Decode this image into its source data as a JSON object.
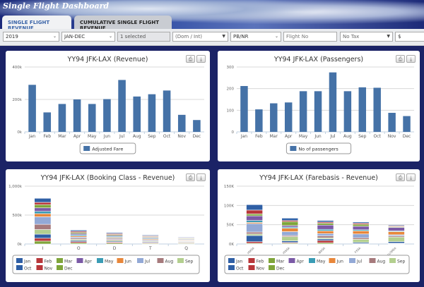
{
  "app": {
    "title": "Single Flight Dashboard"
  },
  "tabs": [
    {
      "label": "SINGLE FLIGHT REVENUE",
      "active": true
    },
    {
      "label": "CUMULATIVE SINGLE FLIGHT REVENUE",
      "active": false
    }
  ],
  "filters": {
    "year": "2019",
    "period": "JAN-DEC",
    "selection": "1 selected",
    "dom_int": "(Dom / Int)",
    "pb_nr": "PB/NR",
    "flight_placeholder": "Flight No",
    "tax": "No Tax",
    "currency": "$"
  },
  "icons": {
    "print": "printer-icon",
    "download": "download-icon"
  },
  "colors": {
    "bar": "#4572a7",
    "stack": [
      "#2f5fa5",
      "#b8373a",
      "#7fa53a",
      "#7b5aa6",
      "#3a9cb5",
      "#e8873a",
      "#93a9d6",
      "#a67a7c",
      "#b3cf8f",
      "#2f5fa5",
      "#b8373a",
      "#7fa53a"
    ]
  },
  "chart_data": [
    {
      "type": "bar",
      "title": "YY94 JFK-LAX (Revenue)",
      "categories": [
        "Jan",
        "Feb",
        "Mar",
        "Apr",
        "May",
        "Jun",
        "Jul",
        "Aug",
        "Sep",
        "Oct",
        "Nov",
        "Dec"
      ],
      "yticks": [
        "0k",
        "200k",
        "400k"
      ],
      "ylim": [
        0,
        400000
      ],
      "series": [
        {
          "name": "Adjusted Fare",
          "values": [
            290000,
            120000,
            172000,
            200000,
            172000,
            202000,
            320000,
            218000,
            232000,
            255000,
            105000,
            73000
          ]
        }
      ],
      "legend": "bottom",
      "grid": true
    },
    {
      "type": "bar",
      "title": "YY94 JFK-LAX (Passengers)",
      "categories": [
        "Jan",
        "Feb",
        "Mar",
        "Apr",
        "May",
        "Jun",
        "Jul",
        "Aug",
        "Sep",
        "Oct",
        "Nov",
        "Dec"
      ],
      "yticks": [
        "0",
        "100",
        "200",
        "300"
      ],
      "ylim": [
        0,
        300
      ],
      "series": [
        {
          "name": "No of passengers",
          "values": [
            212,
            104,
            132,
            136,
            188,
            188,
            275,
            188,
            206,
            204,
            88,
            73
          ]
        }
      ],
      "legend": "bottom",
      "grid": true
    },
    {
      "type": "bar",
      "stacked": true,
      "title": "YY94 JFK-LAX (Booking Class - Revenue)",
      "categories": [
        "I",
        "O",
        "D",
        "T",
        "Q"
      ],
      "yticks": [
        "0k",
        "500k",
        "1,000k"
      ],
      "ylim": [
        0,
        1000000
      ],
      "legend": "bottom",
      "grid": true,
      "series": [
        {
          "name": "Jan",
          "values": [
            70000,
            20000,
            16000,
            13000,
            10000
          ]
        },
        {
          "name": "Feb",
          "values": [
            40000,
            20000,
            16000,
            13000,
            10000
          ]
        },
        {
          "name": "Mar",
          "values": [
            55000,
            20000,
            16000,
            13000,
            10000
          ]
        },
        {
          "name": "Apr",
          "values": [
            60000,
            20000,
            16000,
            13000,
            10000
          ]
        },
        {
          "name": "May",
          "values": [
            40000,
            20000,
            16000,
            13000,
            10000
          ]
        },
        {
          "name": "Jun",
          "values": [
            55000,
            20000,
            16000,
            13000,
            10000
          ]
        },
        {
          "name": "Jul",
          "values": [
            130000,
            20000,
            17000,
            13000,
            10000
          ]
        },
        {
          "name": "Aug",
          "values": [
            90000,
            20000,
            17000,
            13000,
            10000
          ]
        },
        {
          "name": "Sep",
          "values": [
            80000,
            20000,
            17000,
            13000,
            10000
          ]
        },
        {
          "name": "Oct",
          "values": [
            70000,
            20000,
            16000,
            13000,
            10000
          ]
        },
        {
          "name": "Nov",
          "values": [
            50000,
            20000,
            16000,
            12000,
            10000
          ]
        },
        {
          "name": "Dec",
          "values": [
            50000,
            20000,
            16000,
            12000,
            10000
          ]
        }
      ]
    },
    {
      "type": "bar",
      "stacked": true,
      "title": "YY94 JFK-LAX (Farebasis - Revenue)",
      "categories": [
        "IOXSA",
        "IOSSA",
        "IBKSA",
        "FXSA",
        "EGLOREA"
      ],
      "yticks": [
        "0K",
        "50K",
        "100K",
        "150K"
      ],
      "ylim": [
        0,
        150000
      ],
      "legend": "bottom",
      "grid": true,
      "series": [
        {
          "name": "Jan",
          "values": [
            14000,
            6000,
            4000,
            3000,
            2000
          ]
        },
        {
          "name": "Feb",
          "values": [
            10000,
            3000,
            3000,
            3000,
            2000
          ]
        },
        {
          "name": "Mar",
          "values": [
            5000,
            10000,
            5000,
            5000,
            2000
          ]
        },
        {
          "name": "Apr",
          "values": [
            12000,
            4000,
            11000,
            9000,
            9000
          ]
        },
        {
          "name": "May",
          "values": [
            5000,
            3000,
            4000,
            3000,
            2000
          ]
        },
        {
          "name": "Jun",
          "values": [
            3000,
            9000,
            7000,
            8000,
            8000
          ]
        },
        {
          "name": "Jul",
          "values": [
            22000,
            10000,
            6000,
            10000,
            3000
          ]
        },
        {
          "name": "Aug",
          "values": [
            5000,
            3000,
            5000,
            4000,
            3000
          ]
        },
        {
          "name": "Sep",
          "values": [
            4000,
            11000,
            3000,
            8000,
            12000
          ]
        },
        {
          "name": "Oct",
          "values": [
            16000,
            4000,
            4000,
            3000,
            4000
          ]
        },
        {
          "name": "Nov",
          "values": [
            4000,
            2000,
            6000,
            1000,
            1000
          ]
        },
        {
          "name": "Dec",
          "values": [
            2000,
            2000,
            3000,
            0,
            1000
          ]
        }
      ]
    }
  ]
}
